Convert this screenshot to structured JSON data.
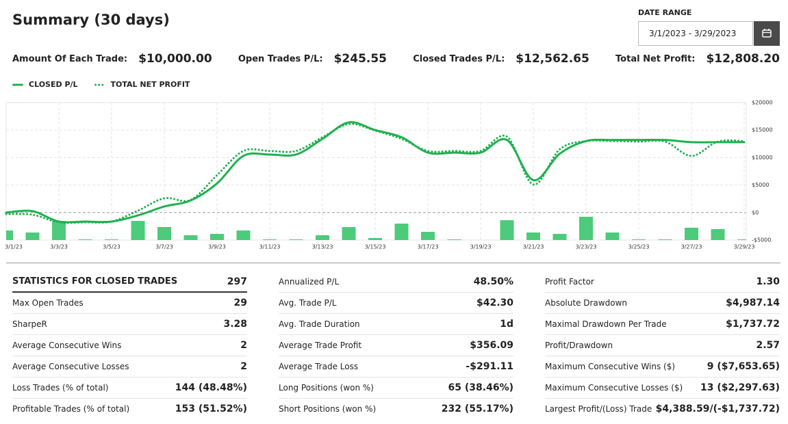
{
  "header": {
    "title": "Summary (30 days)",
    "date_range_label": "DATE RANGE",
    "date_range": "3/1/2023 - 3/29/2023"
  },
  "summary": [
    {
      "label": "Amount Of Each Trade:",
      "value": "$10,000.00"
    },
    {
      "label": "Open Trades P/L:",
      "value": "$245.55"
    },
    {
      "label": "Closed Trades P/L:",
      "value": "$12,562.65"
    },
    {
      "label": "Total Net Profit:",
      "value": "$12,808.20"
    }
  ],
  "chart_data": {
    "type": "line",
    "categories": [
      "3/1/23",
      null,
      "3/3/23",
      null,
      "3/5/23",
      null,
      "3/7/23",
      null,
      "3/9/23",
      null,
      "3/11/23",
      null,
      "3/13/23",
      null,
      "3/15/23",
      null,
      "3/17/23",
      null,
      "3/19/23",
      null,
      "3/21/23",
      null,
      "3/23/23",
      null,
      "3/25/23",
      null,
      "3/27/23",
      null,
      "3/29/23"
    ],
    "series": [
      {
        "name": "CLOSED P/L",
        "color": "#1fb14f",
        "dash": "solid",
        "values": [
          0,
          260,
          -1640,
          -1640,
          -1640,
          -520,
          1100,
          2200,
          5300,
          10300,
          10550,
          10550,
          13400,
          16400,
          15000,
          13700,
          10900,
          10900,
          10900,
          13200,
          5900,
          10700,
          13000,
          13200,
          13200,
          13200,
          12800,
          12800,
          12800
        ]
      },
      {
        "name": "TOTAL NET PROFIT",
        "color": "#1fb14f",
        "dash": "dotted",
        "values": [
          -270,
          -400,
          -1770,
          -1770,
          -1640,
          350,
          2600,
          2300,
          6800,
          11200,
          11200,
          11200,
          13700,
          16100,
          14900,
          13400,
          11200,
          11200,
          11200,
          13800,
          5100,
          11500,
          13000,
          13000,
          12900,
          12900,
          10300,
          12900,
          13000
        ]
      }
    ],
    "bars": {
      "color": "#4ccb7b",
      "values": [
        -3260,
        -3630,
        -1520,
        -4880,
        -4880,
        -1520,
        -2640,
        -4130,
        -3880,
        -3260,
        -4880,
        -4880,
        -4130,
        -2640,
        -4630,
        -2010,
        -3510,
        -4880,
        null,
        -1390,
        -3630,
        -3880,
        -770,
        -3630,
        -4880,
        -4880,
        -2760,
        -3010,
        -4880
      ]
    },
    "ylim": [
      -5000,
      20000
    ],
    "yticks": [
      {
        "value": -5000,
        "label": "-$5000"
      },
      {
        "value": 0,
        "label": "$0"
      },
      {
        "value": 5000,
        "label": "$5000"
      },
      {
        "value": 10000,
        "label": "$10000"
      },
      {
        "value": 15000,
        "label": "$15000"
      },
      {
        "value": 20000,
        "label": "$20000"
      }
    ],
    "grid": true
  },
  "stats": [
    [
      {
        "label": "STATISTICS FOR CLOSED TRADES",
        "value": "297"
      },
      {
        "label": "Max Open Trades",
        "value": "29"
      },
      {
        "label": "SharpeR",
        "value": "3.28"
      },
      {
        "label": "Average Consecutive Wins",
        "value": "2"
      },
      {
        "label": "Average Consecutive Losses",
        "value": "2"
      },
      {
        "label": "Loss Trades (% of total)",
        "value": "144 (48.48%)"
      },
      {
        "label": "Profitable Trades (% of total)",
        "value": "153 (51.52%)"
      }
    ],
    [
      {
        "label": "Annualized P/L",
        "value": "48.50%"
      },
      {
        "label": "Avg. Trade P/L",
        "value": "$42.30"
      },
      {
        "label": "Avg. Trade Duration",
        "value": "1d"
      },
      {
        "label": "Average Trade Profit",
        "value": "$356.09"
      },
      {
        "label": "Average Trade Loss",
        "value": "-$291.11"
      },
      {
        "label": "Long Positions (won %)",
        "value": "65 (38.46%)"
      },
      {
        "label": "Short Positions (won %)",
        "value": "232 (55.17%)"
      }
    ],
    [
      {
        "label": "Profit Factor",
        "value": "1.30"
      },
      {
        "label": "Absolute Drawdown",
        "value": "$4,987.14"
      },
      {
        "label": "Maximal Drawdown Per Trade",
        "value": "$1,737.72"
      },
      {
        "label": "Profit/Drawdown",
        "value": "2.57"
      },
      {
        "label": "Maximum Consecutive Wins ($)",
        "value": "9 ($7,653.65)"
      },
      {
        "label": "Maximum Consecutive Losses ($)",
        "value": "13 ($2,297.63)"
      },
      {
        "label": "Largest Profit/(Loss) Trade",
        "value": "$4,388.59/(-$1,737.72)"
      }
    ]
  ]
}
